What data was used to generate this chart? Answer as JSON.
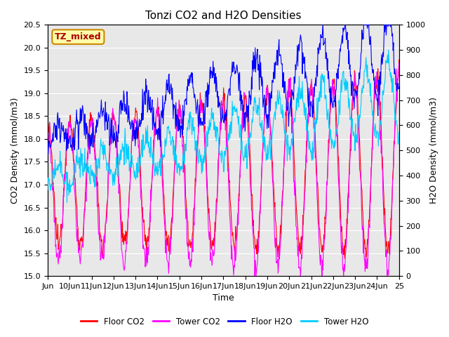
{
  "title": "Tonzi CO2 and H2O Densities",
  "xlabel": "Time",
  "ylabel_left": "CO2 Density (mmol/m3)",
  "ylabel_right": "H2O Density (mmol/m3)",
  "ylim_left": [
    15.0,
    20.5
  ],
  "ylim_right": [
    0,
    1000
  ],
  "yticks_left": [
    15.0,
    15.5,
    16.0,
    16.5,
    17.0,
    17.5,
    18.0,
    18.5,
    19.0,
    19.5,
    20.0,
    20.5
  ],
  "yticks_right": [
    0,
    100,
    200,
    300,
    400,
    500,
    600,
    700,
    800,
    900,
    1000
  ],
  "xtick_labels": [
    "Jun",
    "10Jun",
    "11Jun",
    "12Jun",
    "13Jun",
    "14Jun",
    "15Jun",
    "16Jun",
    "17Jun",
    "18Jun",
    "19Jun",
    "20Jun",
    "21Jun",
    "22Jun",
    "23Jun",
    "24Jun",
    "25"
  ],
  "n_days": 16,
  "pts_per_day": 48,
  "floor_co2_color": "#FF0000",
  "tower_co2_color": "#FF00FF",
  "floor_h2o_color": "#0000FF",
  "tower_h2o_color": "#00CCFF",
  "legend_labels": [
    "Floor CO2",
    "Tower CO2",
    "Floor H2O",
    "Tower H2O"
  ],
  "annotation_text": "TZ_mixed",
  "annotation_color": "#AA0000",
  "annotation_bg": "#FFFFAA",
  "annotation_border": "#CC8800",
  "background_color": "#E8E8E8",
  "grid_color": "#FFFFFF",
  "title_fontsize": 11,
  "label_fontsize": 9,
  "tick_fontsize": 8
}
